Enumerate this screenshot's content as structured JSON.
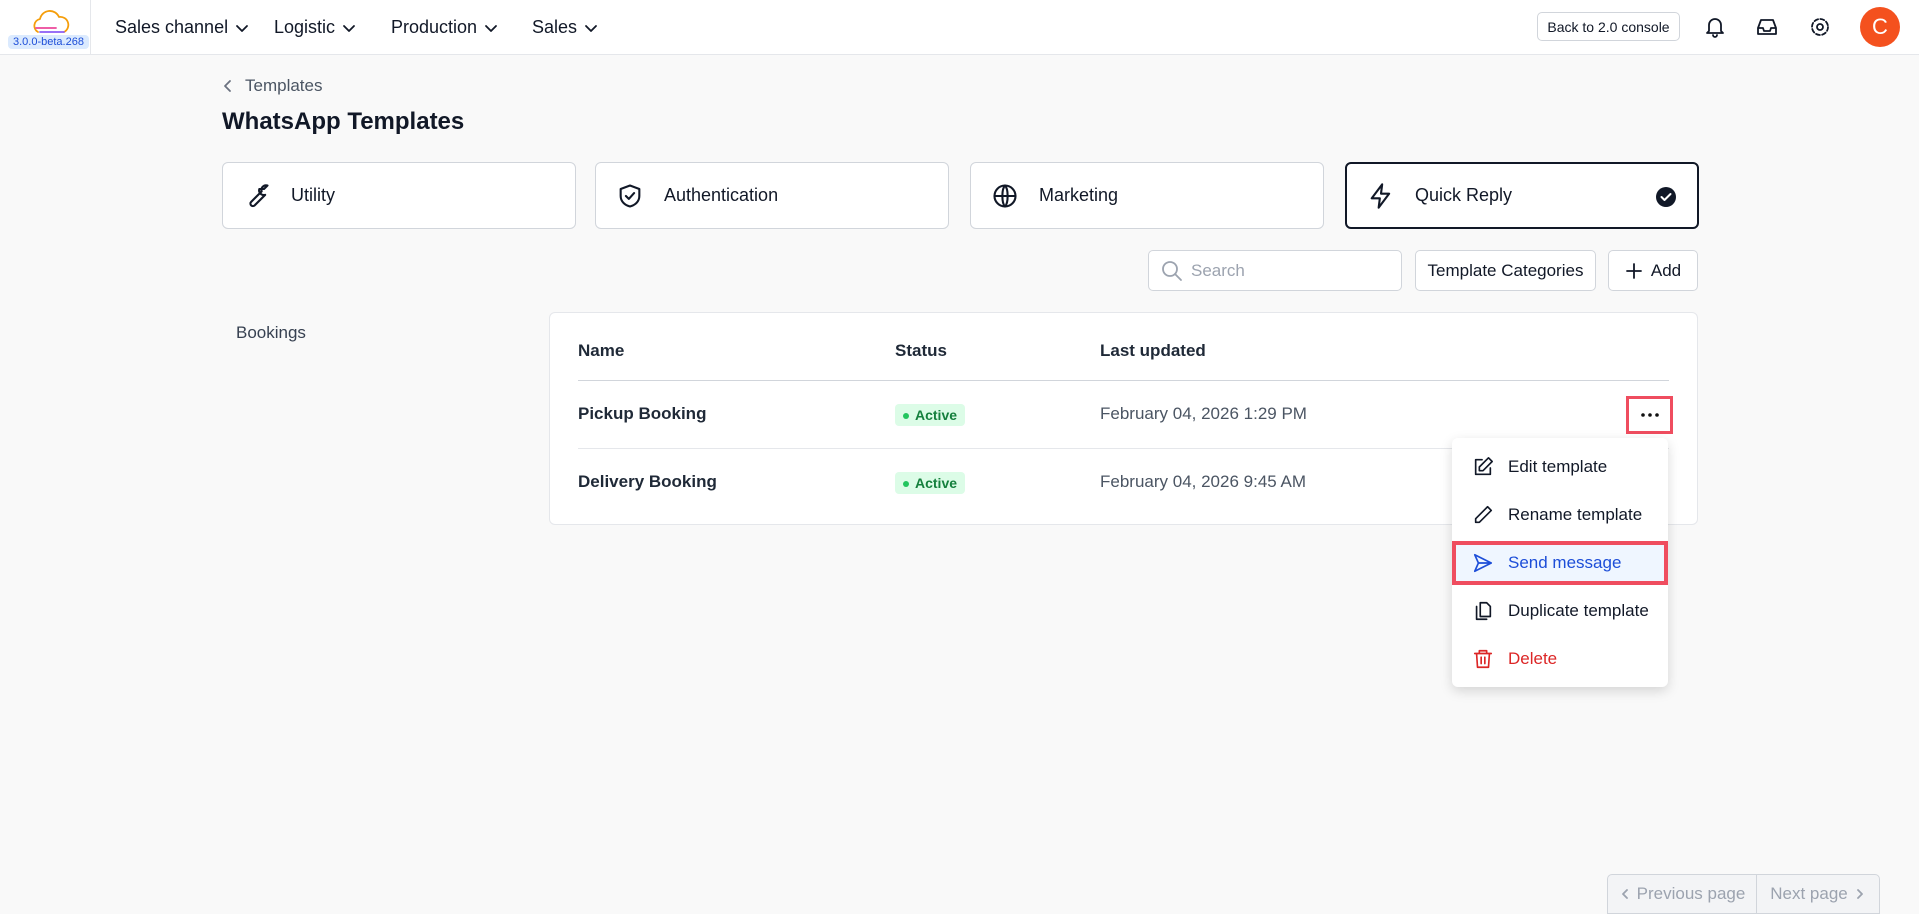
{
  "topbar": {
    "version": "3.0.0-beta.268",
    "nav": [
      "Sales channel",
      "Logistic",
      "Production",
      "Sales"
    ],
    "console_button": "Back to 2.0 console",
    "avatar": "C"
  },
  "breadcrumb": "Templates",
  "title": "WhatsApp Templates",
  "tabs": [
    "Utility",
    "Authentication",
    "Marketing",
    "Quick Reply"
  ],
  "toolbar": {
    "search_placeholder": "Search",
    "categories_button": "Template Categories",
    "add_button": "Add"
  },
  "sidebar": {
    "category": "Bookings"
  },
  "table": {
    "headers": [
      "Name",
      "Status",
      "Last updated"
    ],
    "rows": [
      [
        "Pickup Booking",
        "Active",
        "February 04, 2026 1:29 PM"
      ],
      [
        "Delivery Booking",
        "Active",
        "February 04, 2026 9:45 AM"
      ]
    ]
  },
  "menu": [
    "Edit template",
    "Rename template",
    "Send message",
    "Duplicate template",
    "Delete"
  ],
  "pagination": {
    "previous": "Previous page",
    "next": "Next page"
  }
}
